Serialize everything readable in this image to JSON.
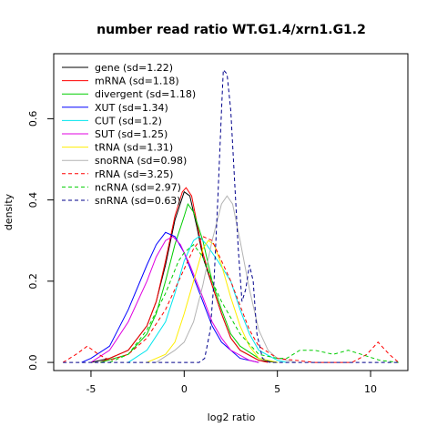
{
  "chart_data": {
    "type": "line",
    "title": "number read ratio WT.G1.4/xrn1.G1.2",
    "xlabel": "log2 ratio",
    "ylabel": "density",
    "xlim": [
      -7,
      12
    ],
    "ylim": [
      -0.02,
      0.76
    ],
    "x_ticks": [
      -5,
      0,
      5,
      10
    ],
    "y_ticks": [
      0.0,
      0.2,
      0.4,
      0.6
    ],
    "x_tick_labels": [
      "-5",
      "0",
      "5",
      "10"
    ],
    "y_tick_labels": [
      "0.0",
      "0.2",
      "0.4",
      "0.6"
    ],
    "grid": false,
    "legend_position": "top-left",
    "series": [
      {
        "name": "gene (sd=1.22)",
        "color": "#000000",
        "dash": "solid",
        "points": [
          [
            -5,
            0
          ],
          [
            -4,
            0.01
          ],
          [
            -3,
            0.03
          ],
          [
            -2,
            0.09
          ],
          [
            -1.5,
            0.15
          ],
          [
            -1,
            0.24
          ],
          [
            -0.5,
            0.35
          ],
          [
            0,
            0.42
          ],
          [
            0.3,
            0.41
          ],
          [
            0.7,
            0.33
          ],
          [
            1,
            0.26
          ],
          [
            1.5,
            0.19
          ],
          [
            2,
            0.12
          ],
          [
            2.5,
            0.06
          ],
          [
            3,
            0.03
          ],
          [
            4,
            0.005
          ],
          [
            5,
            0
          ]
        ]
      },
      {
        "name": "mRNA (sd=1.18)",
        "color": "#ff0000",
        "dash": "solid",
        "points": [
          [
            -4.5,
            0
          ],
          [
            -4,
            0.01
          ],
          [
            -3,
            0.03
          ],
          [
            -2,
            0.09
          ],
          [
            -1.5,
            0.15
          ],
          [
            -1,
            0.25
          ],
          [
            -0.5,
            0.36
          ],
          [
            -0.1,
            0.42
          ],
          [
            0.1,
            0.43
          ],
          [
            0.4,
            0.41
          ],
          [
            0.7,
            0.34
          ],
          [
            1,
            0.27
          ],
          [
            1.5,
            0.19
          ],
          [
            2,
            0.12
          ],
          [
            2.5,
            0.06
          ],
          [
            3,
            0.03
          ],
          [
            4,
            0.005
          ],
          [
            4.5,
            0
          ]
        ]
      },
      {
        "name": "divergent (sd=1.18)",
        "color": "#00cd00",
        "dash": "solid",
        "points": [
          [
            -4.5,
            0
          ],
          [
            -3,
            0.02
          ],
          [
            -2,
            0.07
          ],
          [
            -1.5,
            0.12
          ],
          [
            -1,
            0.2
          ],
          [
            -0.5,
            0.29
          ],
          [
            0,
            0.36
          ],
          [
            0.2,
            0.39
          ],
          [
            0.5,
            0.37
          ],
          [
            1,
            0.3
          ],
          [
            1.5,
            0.2
          ],
          [
            2,
            0.13
          ],
          [
            2.5,
            0.07
          ],
          [
            3,
            0.04
          ],
          [
            4,
            0.01
          ],
          [
            5,
            0
          ]
        ]
      },
      {
        "name": "XUT (sd=1.34)",
        "color": "#0000ff",
        "dash": "solid",
        "points": [
          [
            -5.5,
            0
          ],
          [
            -5,
            0.01
          ],
          [
            -4,
            0.04
          ],
          [
            -3,
            0.13
          ],
          [
            -2,
            0.24
          ],
          [
            -1.5,
            0.29
          ],
          [
            -1,
            0.32
          ],
          [
            -0.5,
            0.31
          ],
          [
            0,
            0.27
          ],
          [
            0.5,
            0.21
          ],
          [
            1,
            0.15
          ],
          [
            1.5,
            0.09
          ],
          [
            2,
            0.05
          ],
          [
            3,
            0.01
          ],
          [
            4,
            0
          ]
        ]
      },
      {
        "name": "CUT (sd=1.2)",
        "color": "#00e5ee",
        "dash": "solid",
        "points": [
          [
            -3,
            0
          ],
          [
            -2,
            0.03
          ],
          [
            -1,
            0.1
          ],
          [
            -0.5,
            0.17
          ],
          [
            0,
            0.25
          ],
          [
            0.5,
            0.3
          ],
          [
            0.8,
            0.31
          ],
          [
            1.2,
            0.29
          ],
          [
            1.8,
            0.25
          ],
          [
            2.5,
            0.2
          ],
          [
            3,
            0.13
          ],
          [
            3.5,
            0.07
          ],
          [
            4,
            0.03
          ],
          [
            5,
            0.005
          ],
          [
            5.5,
            0
          ]
        ]
      },
      {
        "name": "SUT (sd=1.25)",
        "color": "#e000e0",
        "dash": "solid",
        "points": [
          [
            -5,
            0
          ],
          [
            -4,
            0.03
          ],
          [
            -3,
            0.1
          ],
          [
            -2,
            0.2
          ],
          [
            -1.5,
            0.26
          ],
          [
            -1,
            0.3
          ],
          [
            -0.6,
            0.31
          ],
          [
            -0.2,
            0.29
          ],
          [
            0.3,
            0.24
          ],
          [
            1,
            0.16
          ],
          [
            1.5,
            0.1
          ],
          [
            2,
            0.06
          ],
          [
            2.5,
            0.03
          ],
          [
            3.5,
            0.005
          ],
          [
            4,
            0
          ]
        ]
      },
      {
        "name": "tRNA (sd=1.31)",
        "color": "#ffee00",
        "dash": "solid",
        "points": [
          [
            -2,
            0
          ],
          [
            -1,
            0.02
          ],
          [
            -0.5,
            0.05
          ],
          [
            0,
            0.12
          ],
          [
            0.5,
            0.2
          ],
          [
            1,
            0.28
          ],
          [
            1.3,
            0.3
          ],
          [
            1.6,
            0.29
          ],
          [
            2,
            0.24
          ],
          [
            2.5,
            0.16
          ],
          [
            3,
            0.09
          ],
          [
            3.5,
            0.04
          ],
          [
            4,
            0.01
          ],
          [
            5,
            0
          ]
        ]
      },
      {
        "name": "snoRNA (sd=0.98)",
        "color": "#b3b3b3",
        "dash": "solid",
        "points": [
          [
            -1.5,
            0
          ],
          [
            -0.5,
            0.03
          ],
          [
            0,
            0.05
          ],
          [
            0.5,
            0.1
          ],
          [
            1,
            0.19
          ],
          [
            1.5,
            0.3
          ],
          [
            2,
            0.39
          ],
          [
            2.3,
            0.41
          ],
          [
            2.6,
            0.39
          ],
          [
            3,
            0.3
          ],
          [
            3.5,
            0.18
          ],
          [
            4,
            0.08
          ],
          [
            4.5,
            0.03
          ],
          [
            5,
            0.01
          ],
          [
            6,
            0
          ]
        ]
      },
      {
        "name": "rRNA (sd=3.25)",
        "color": "#ff0000",
        "dash": "dashed",
        "points": [
          [
            -6.5,
            0
          ],
          [
            -5.8,
            0.02
          ],
          [
            -5.2,
            0.04
          ],
          [
            -4.6,
            0.02
          ],
          [
            -4,
            0.005
          ],
          [
            -3,
            0.02
          ],
          [
            -2,
            0.06
          ],
          [
            -1,
            0.13
          ],
          [
            0,
            0.23
          ],
          [
            0.5,
            0.28
          ],
          [
            1,
            0.31
          ],
          [
            1.5,
            0.3
          ],
          [
            2,
            0.25
          ],
          [
            2.5,
            0.2
          ],
          [
            3,
            0.14
          ],
          [
            3.5,
            0.08
          ],
          [
            4,
            0.04
          ],
          [
            5,
            0.01
          ],
          [
            7,
            0
          ],
          [
            9,
            0
          ],
          [
            9.8,
            0.02
          ],
          [
            10.4,
            0.05
          ],
          [
            11,
            0.02
          ],
          [
            11.5,
            0
          ]
        ]
      },
      {
        "name": "ncRNA (sd=2.97)",
        "color": "#00cd00",
        "dash": "dashed",
        "points": [
          [
            -4,
            0
          ],
          [
            -3,
            0.02
          ],
          [
            -2,
            0.08
          ],
          [
            -1,
            0.17
          ],
          [
            -0.3,
            0.25
          ],
          [
            0,
            0.27
          ],
          [
            0.5,
            0.29
          ],
          [
            1,
            0.26
          ],
          [
            1.5,
            0.2
          ],
          [
            2,
            0.15
          ],
          [
            3,
            0.07
          ],
          [
            4,
            0.02
          ],
          [
            5,
            0.01
          ],
          [
            5.5,
            0.01
          ],
          [
            6.2,
            0.03
          ],
          [
            7,
            0.03
          ],
          [
            8,
            0.02
          ],
          [
            8.8,
            0.03
          ],
          [
            9.5,
            0.02
          ],
          [
            10.5,
            0.005
          ],
          [
            11.5,
            0
          ]
        ]
      },
      {
        "name": "snRNA (sd=0.63)",
        "color": "#00008b",
        "dash": "dashed",
        "points": [
          [
            -6.5,
            0
          ],
          [
            0.8,
            0
          ],
          [
            1.1,
            0.01
          ],
          [
            1.4,
            0.08
          ],
          [
            1.6,
            0.2
          ],
          [
            1.8,
            0.4
          ],
          [
            2,
            0.62
          ],
          [
            2.1,
            0.72
          ],
          [
            2.3,
            0.71
          ],
          [
            2.5,
            0.62
          ],
          [
            2.7,
            0.45
          ],
          [
            2.9,
            0.28
          ],
          [
            3.1,
            0.15
          ],
          [
            3.3,
            0.18
          ],
          [
            3.5,
            0.24
          ],
          [
            3.7,
            0.2
          ],
          [
            3.9,
            0.07
          ],
          [
            4.2,
            0.01
          ],
          [
            4.6,
            0
          ],
          [
            11.5,
            0
          ]
        ]
      }
    ]
  }
}
